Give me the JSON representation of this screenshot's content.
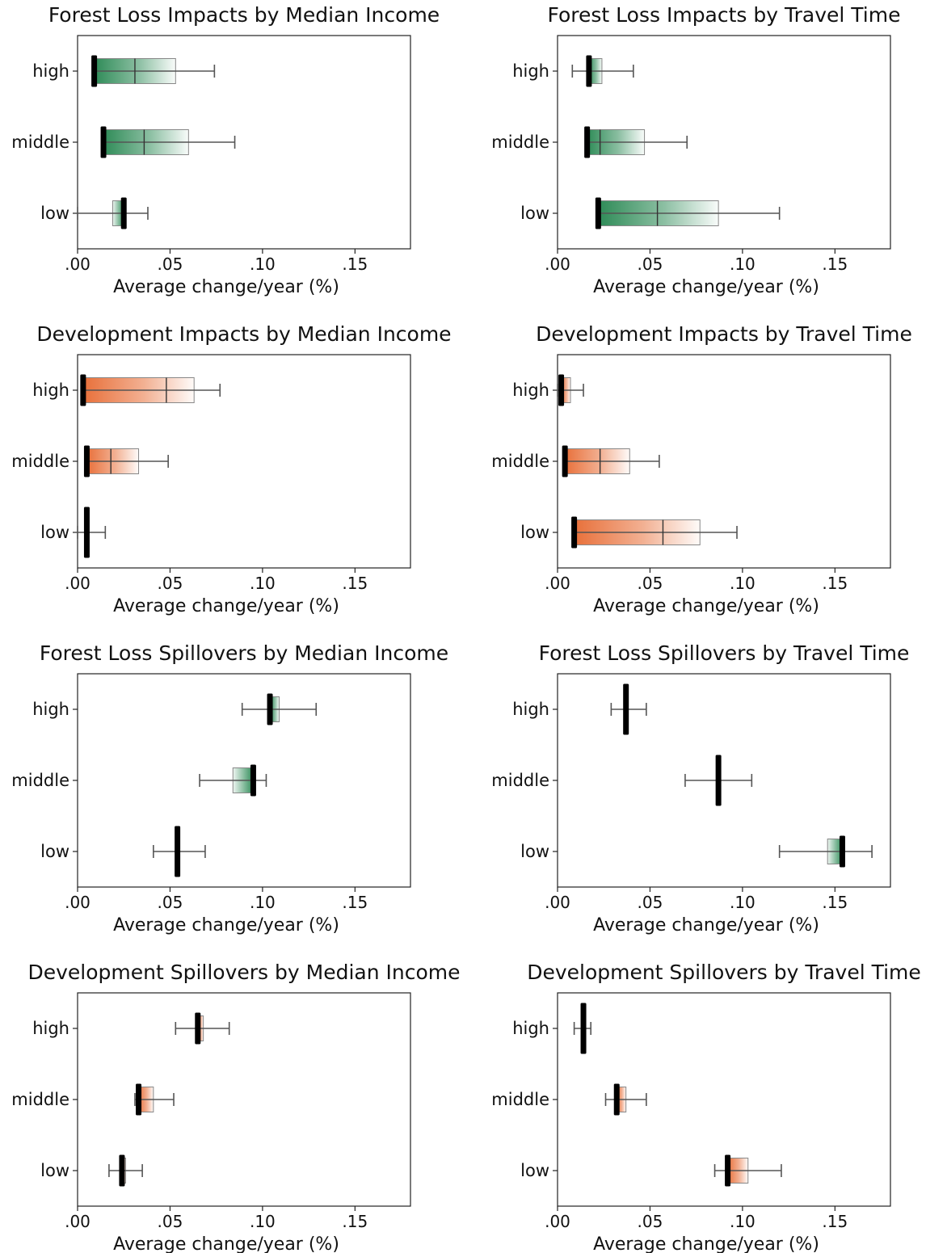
{
  "chart_data": [
    {
      "type": "bar",
      "title": "Forest Loss Impacts by Median Income",
      "xlabel": "Average change/year (%)",
      "xlim": [
        0,
        0.18
      ],
      "xticks": [
        ".00",
        ".05",
        ".10",
        ".15"
      ],
      "categories": [
        "high",
        "middle",
        "low"
      ],
      "color": "#2e8b57",
      "series": [
        {
          "category": "high",
          "start": 0.009,
          "end": 0.053,
          "whisker_low": 0.009,
          "whisker_high": 0.074,
          "median": 0.031,
          "marker": 0.009
        },
        {
          "category": "middle",
          "start": 0.014,
          "end": 0.06,
          "whisker_low": 0.014,
          "whisker_high": 0.085,
          "median": 0.036,
          "marker": 0.014
        },
        {
          "category": "low",
          "start": 0.019,
          "end": 0.025,
          "whisker_low": 0.0,
          "whisker_high": 0.038,
          "median": 0.025,
          "marker": 0.025
        }
      ]
    },
    {
      "type": "bar",
      "title": "Forest Loss Impacts by Travel Time",
      "xlabel": "Average change/year (%)",
      "xlim": [
        0,
        0.18
      ],
      "xticks": [
        ".00",
        ".05",
        ".10",
        ".15"
      ],
      "categories": [
        "high",
        "middle",
        "low"
      ],
      "color": "#2e8b57",
      "series": [
        {
          "category": "high",
          "start": 0.017,
          "end": 0.024,
          "whisker_low": 0.008,
          "whisker_high": 0.041,
          "median": 0.017,
          "marker": 0.017
        },
        {
          "category": "middle",
          "start": 0.016,
          "end": 0.047,
          "whisker_low": 0.016,
          "whisker_high": 0.07,
          "median": 0.023,
          "marker": 0.016
        },
        {
          "category": "low",
          "start": 0.022,
          "end": 0.087,
          "whisker_low": 0.022,
          "whisker_high": 0.12,
          "median": 0.054,
          "marker": 0.022
        }
      ]
    },
    {
      "type": "bar",
      "title": "Development Impacts by Median Income",
      "xlabel": "Average change/year (%)",
      "xlim": [
        0,
        0.18
      ],
      "xticks": [
        ".00",
        ".05",
        ".10",
        ".15"
      ],
      "categories": [
        "high",
        "middle",
        "low"
      ],
      "color": "#e8703a",
      "series": [
        {
          "category": "high",
          "start": 0.003,
          "end": 0.063,
          "whisker_low": 0.003,
          "whisker_high": 0.077,
          "median": 0.048,
          "marker": 0.003
        },
        {
          "category": "middle",
          "start": 0.005,
          "end": 0.033,
          "whisker_low": 0.005,
          "whisker_high": 0.049,
          "median": 0.018,
          "marker": 0.005
        },
        {
          "category": "low",
          "start": 0.005,
          "end": 0.005,
          "whisker_low": 0.0,
          "whisker_high": 0.015,
          "median": 0.005,
          "marker": 0.005
        }
      ]
    },
    {
      "type": "bar",
      "title": "Development Impacts by Travel Time",
      "xlabel": "Average change/year (%)",
      "xlim": [
        0,
        0.18
      ],
      "xticks": [
        ".00",
        ".05",
        ".10",
        ".15"
      ],
      "categories": [
        "high",
        "middle",
        "low"
      ],
      "color": "#e8703a",
      "series": [
        {
          "category": "high",
          "start": 0.002,
          "end": 0.007,
          "whisker_low": 0.0,
          "whisker_high": 0.014,
          "median": 0.002,
          "marker": 0.002
        },
        {
          "category": "middle",
          "start": 0.004,
          "end": 0.039,
          "whisker_low": 0.004,
          "whisker_high": 0.055,
          "median": 0.023,
          "marker": 0.004
        },
        {
          "category": "low",
          "start": 0.009,
          "end": 0.077,
          "whisker_low": 0.009,
          "whisker_high": 0.097,
          "median": 0.057,
          "marker": 0.009
        }
      ]
    },
    {
      "type": "bar",
      "title": "Forest Loss Spillovers by Median Income",
      "xlabel": "Average change/year (%)",
      "xlim": [
        0,
        0.18
      ],
      "xticks": [
        ".00",
        ".05",
        ".10",
        ".15"
      ],
      "categories": [
        "high",
        "middle",
        "low"
      ],
      "color": "#2e8b57",
      "series": [
        {
          "category": "high",
          "start": 0.104,
          "end": 0.109,
          "whisker_low": 0.089,
          "whisker_high": 0.129,
          "median": 0.104,
          "marker": 0.104
        },
        {
          "category": "middle",
          "start": 0.084,
          "end": 0.095,
          "whisker_low": 0.066,
          "whisker_high": 0.102,
          "median": 0.095,
          "marker": 0.095
        },
        {
          "category": "low",
          "start": 0.054,
          "end": 0.054,
          "whisker_low": 0.041,
          "whisker_high": 0.069,
          "median": 0.054,
          "marker": 0.054
        }
      ]
    },
    {
      "type": "bar",
      "title": "Forest Loss Spillovers by Travel Time",
      "xlabel": "Average change/year (%)",
      "xlim": [
        0,
        0.18
      ],
      "xticks": [
        ".00",
        ".05",
        ".10",
        ".15"
      ],
      "categories": [
        "high",
        "middle",
        "low"
      ],
      "color": "#2e8b57",
      "series": [
        {
          "category": "high",
          "start": 0.037,
          "end": 0.037,
          "whisker_low": 0.029,
          "whisker_high": 0.048,
          "median": 0.037,
          "marker": 0.037
        },
        {
          "category": "middle",
          "start": 0.087,
          "end": 0.087,
          "whisker_low": 0.069,
          "whisker_high": 0.105,
          "median": 0.087,
          "marker": 0.087
        },
        {
          "category": "low",
          "start": 0.146,
          "end": 0.154,
          "whisker_low": 0.12,
          "whisker_high": 0.17,
          "median": 0.154,
          "marker": 0.154
        }
      ]
    },
    {
      "type": "bar",
      "title": "Development Spillovers by Median Income",
      "xlabel": "Average change/year (%)",
      "xlim": [
        0,
        0.18
      ],
      "xticks": [
        ".00",
        ".05",
        ".10",
        ".15"
      ],
      "categories": [
        "high",
        "middle",
        "low"
      ],
      "color": "#e8703a",
      "series": [
        {
          "category": "high",
          "start": 0.065,
          "end": 0.068,
          "whisker_low": 0.053,
          "whisker_high": 0.082,
          "median": 0.065,
          "marker": 0.065
        },
        {
          "category": "middle",
          "start": 0.033,
          "end": 0.041,
          "whisker_low": 0.031,
          "whisker_high": 0.052,
          "median": 0.033,
          "marker": 0.033
        },
        {
          "category": "low",
          "start": 0.024,
          "end": 0.026,
          "whisker_low": 0.017,
          "whisker_high": 0.035,
          "median": 0.024,
          "marker": 0.024
        }
      ]
    },
    {
      "type": "bar",
      "title": "Development Spillovers by Travel Time",
      "xlabel": "Average change/year (%)",
      "xlim": [
        0,
        0.18
      ],
      "xticks": [
        ".00",
        ".05",
        ".10",
        ".15"
      ],
      "categories": [
        "high",
        "middle",
        "low"
      ],
      "color": "#e8703a",
      "series": [
        {
          "category": "high",
          "start": 0.014,
          "end": 0.014,
          "whisker_low": 0.009,
          "whisker_high": 0.018,
          "median": 0.014,
          "marker": 0.014
        },
        {
          "category": "middle",
          "start": 0.032,
          "end": 0.037,
          "whisker_low": 0.026,
          "whisker_high": 0.048,
          "median": 0.032,
          "marker": 0.032
        },
        {
          "category": "low",
          "start": 0.092,
          "end": 0.103,
          "whisker_low": 0.085,
          "whisker_high": 0.121,
          "median": 0.092,
          "marker": 0.092
        }
      ]
    }
  ]
}
